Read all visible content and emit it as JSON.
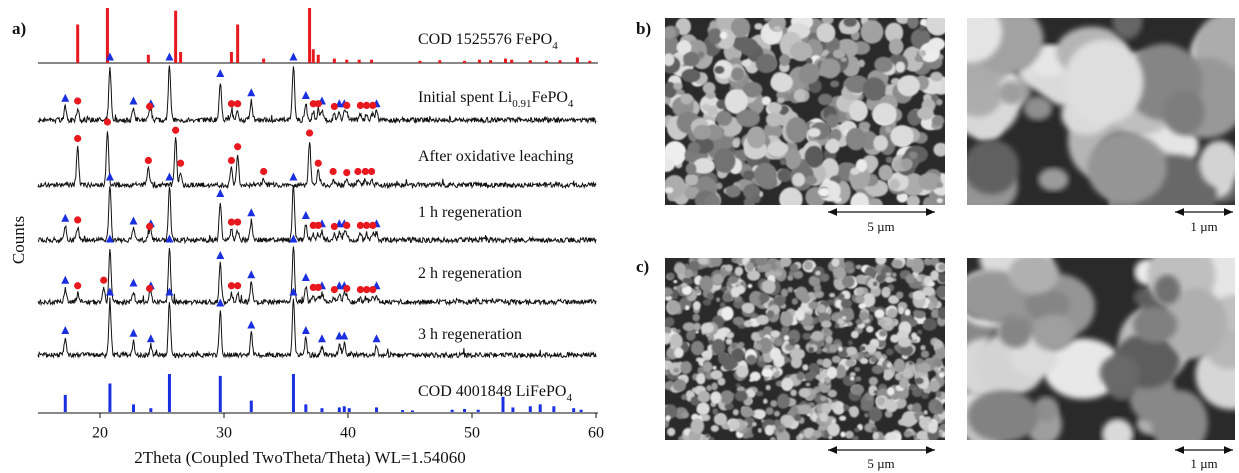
{
  "chart_data": {
    "type": "xrd",
    "panel_label": "a)",
    "xlabel": "2Theta (Coupled TwoTheta/Theta) WL=1.54060",
    "ylabel": "Counts",
    "xlim": [
      15,
      60
    ],
    "xticks": [
      20,
      30,
      40,
      50,
      60
    ],
    "line_color": "#111111",
    "triangle_color": "#1a2fe0",
    "circle_color": "#e8191e",
    "series": [
      {
        "name": [
          "COD 1525576 FePO",
          "4"
        ],
        "color": "#e8191e",
        "sticks": {
          "x": [
            18.2,
            20.6,
            23.9,
            26.1,
            26.5,
            30.6,
            31.1,
            33.2,
            36.9,
            37.2,
            37.6,
            38.9,
            39.9,
            40.9,
            41.9,
            45.8,
            47.4,
            49.4,
            50.6,
            51.5,
            52.7,
            53.2,
            54.7,
            56.0,
            57.1,
            58.5,
            59.5
          ],
          "h": [
            70,
            100,
            15,
            95,
            20,
            20,
            70,
            8,
            100,
            25,
            15,
            8,
            6,
            6,
            6,
            4,
            5,
            4,
            6,
            5,
            8,
            6,
            5,
            4,
            5,
            10,
            4
          ]
        }
      },
      {
        "name": [
          "Initial spent Li",
          "0.91",
          "FePO",
          "4"
        ],
        "triangles": {
          "x": [
            17.2,
            20.8,
            22.7,
            24.1,
            25.6,
            29.7,
            32.2,
            35.6,
            36.6,
            37.9,
            39.3,
            39.7,
            42.3
          ],
          "h": [
            25,
            100,
            20,
            15,
            100,
            70,
            35,
            100,
            30,
            20,
            15,
            15,
            15
          ]
        },
        "circles": {
          "x": [
            18.2,
            24.0,
            30.6,
            31.1,
            37.2,
            37.6,
            38.9,
            39.9,
            41.0,
            41.5,
            42.0
          ],
          "h": [
            20,
            10,
            15,
            15,
            15,
            15,
            10,
            12,
            12,
            12,
            12
          ]
        }
      },
      {
        "name": [
          "After oxidative leaching"
        ],
        "circles": {
          "x": [
            18.2,
            20.6,
            23.9,
            26.1,
            26.5,
            30.6,
            31.1,
            33.2,
            36.9,
            37.6,
            38.8,
            39.9,
            40.8,
            41.4,
            41.9
          ],
          "h": [
            70,
            100,
            30,
            85,
            25,
            30,
            55,
            10,
            80,
            25,
            10,
            8,
            10,
            10,
            10
          ]
        }
      },
      {
        "name": [
          "1 h regeneration"
        ],
        "triangles": {
          "x": [
            17.2,
            20.8,
            22.7,
            24.1,
            25.6,
            29.7,
            32.2,
            35.6,
            36.6,
            37.9,
            39.3,
            39.7,
            42.3
          ],
          "h": [
            25,
            100,
            20,
            15,
            100,
            70,
            35,
            100,
            30,
            15,
            15,
            15,
            15
          ]
        },
        "circles": {
          "x": [
            18.2,
            24.0,
            30.6,
            31.1,
            37.2,
            37.6,
            38.9,
            39.9,
            41.0,
            41.5,
            42.0
          ],
          "h": [
            22,
            10,
            18,
            18,
            12,
            12,
            10,
            12,
            12,
            12,
            12
          ]
        }
      },
      {
        "name": [
          "2 h regeneration"
        ],
        "triangles": {
          "x": [
            17.2,
            20.8,
            22.7,
            24.1,
            25.6,
            29.7,
            32.2,
            35.6,
            36.6,
            37.9,
            39.3,
            39.7,
            42.3
          ],
          "h": [
            25,
            100,
            20,
            15,
            100,
            70,
            35,
            100,
            30,
            15,
            15,
            15,
            15
          ]
        },
        "circles": {
          "x": [
            18.2,
            20.3,
            24.0,
            30.6,
            31.1,
            37.2,
            37.6,
            38.9,
            39.9,
            41.0,
            41.5,
            42.0
          ],
          "h": [
            15,
            25,
            10,
            15,
            15,
            12,
            12,
            8,
            10,
            8,
            8,
            8
          ]
        }
      },
      {
        "name": [
          "3 h regeneration"
        ],
        "triangles": {
          "x": [
            17.2,
            20.8,
            22.7,
            24.1,
            25.6,
            29.7,
            32.2,
            35.6,
            36.6,
            37.9,
            39.3,
            39.7,
            42.3
          ],
          "h": [
            30,
            100,
            25,
            15,
            100,
            80,
            40,
            100,
            30,
            15,
            20,
            20,
            15
          ]
        }
      },
      {
        "name": [
          "COD 4001848 LiFePO",
          "4"
        ],
        "color": "#1a2fe0",
        "sticks": {
          "x": [
            17.2,
            20.8,
            22.7,
            24.1,
            25.6,
            29.7,
            32.2,
            35.6,
            36.6,
            37.9,
            39.3,
            39.7,
            40.1,
            42.3,
            44.4,
            45.2,
            48.4,
            49.4,
            50.5,
            52.5,
            53.3,
            54.7,
            55.5,
            56.6,
            58.2,
            58.8
          ],
          "h": [
            45,
            75,
            20,
            10,
            100,
            95,
            30,
            100,
            20,
            10,
            12,
            15,
            10,
            12,
            5,
            4,
            6,
            8,
            6,
            40,
            12,
            15,
            20,
            15,
            10,
            6
          ]
        }
      }
    ]
  },
  "panels": [
    {
      "label": "b)",
      "images": [
        {
          "scale_bar": "5 µm"
        },
        {
          "scale_bar": "1 µm"
        }
      ]
    },
    {
      "label": "c)",
      "images": [
        {
          "scale_bar": "5 µm"
        },
        {
          "scale_bar": "1 µm"
        }
      ]
    }
  ]
}
